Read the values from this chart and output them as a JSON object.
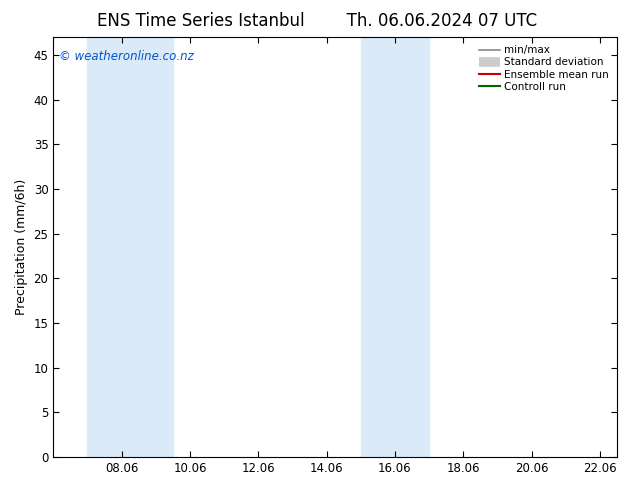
{
  "title": "ENS Time Series Istanbul",
  "subtitle": "Th. 06.06.2024 07 UTC",
  "ylabel": "Precipitation (mm/6h)",
  "copyright": "© weatheronline.co.nz",
  "ylim": [
    0,
    47
  ],
  "yticks": [
    0,
    5,
    10,
    15,
    20,
    25,
    30,
    35,
    40,
    45
  ],
  "xlim_start": 6.0,
  "xlim_end": 22.5,
  "xtick_positions": [
    8.0,
    10.0,
    12.0,
    14.0,
    16.0,
    18.0,
    20.0,
    22.0
  ],
  "xtick_labels": [
    "08.06",
    "10.06",
    "12.06",
    "14.06",
    "16.06",
    "18.06",
    "20.06",
    "22.06"
  ],
  "shaded_bands": [
    {
      "x_start": 7.0,
      "x_end": 9.5,
      "color": "#daeaf8"
    },
    {
      "x_start": 15.0,
      "x_end": 17.0,
      "color": "#daeaf8"
    }
  ],
  "legend_items": [
    {
      "label": "min/max",
      "color": "#888888",
      "linestyle": "-",
      "linewidth": 1.2
    },
    {
      "label": "Standard deviation",
      "color": "#cccccc",
      "linestyle": "-",
      "linewidth": 7
    },
    {
      "label": "Ensemble mean run",
      "color": "#cc0000",
      "linestyle": "-",
      "linewidth": 1.5
    },
    {
      "label": "Controll run",
      "color": "#006600",
      "linestyle": "-",
      "linewidth": 1.5
    }
  ],
  "bg_color": "#ffffff",
  "plot_bg_color": "#ffffff",
  "title_fontsize": 12,
  "axis_fontsize": 9,
  "tick_fontsize": 8.5,
  "copyright_color": "#0055cc",
  "copyright_fontsize": 8.5
}
